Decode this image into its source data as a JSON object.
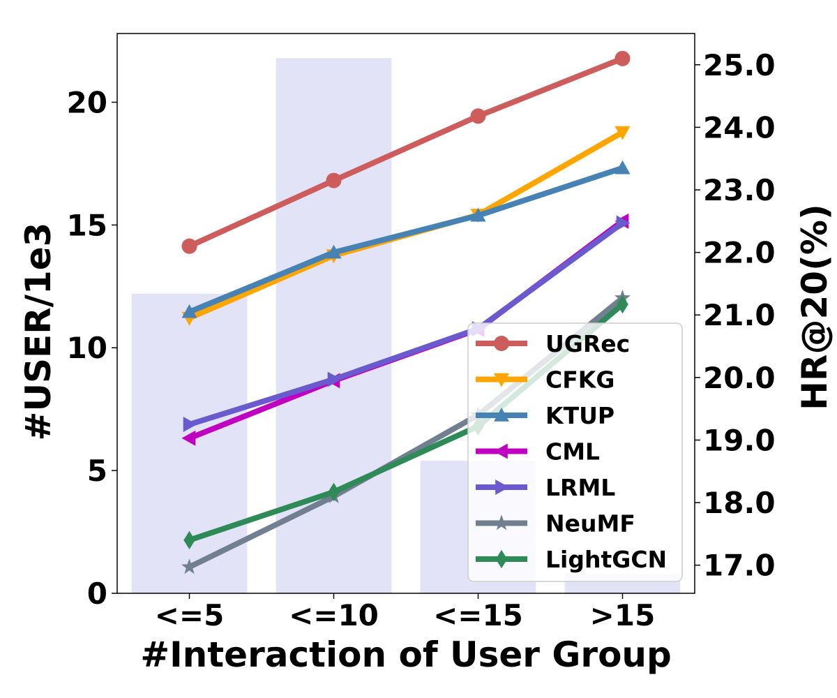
{
  "chart_data": {
    "type": "bar+line",
    "categories": [
      "<=5",
      "<=10",
      "<=15",
      ">15"
    ],
    "xlabel": "#Interaction of User Group",
    "ylabel_left": "#USER/1e3",
    "ylabel_right": "HR@20(%)",
    "ylim_left": [
      0,
      22.8
    ],
    "ylim_right": [
      16.55,
      25.5
    ],
    "yticks_left": [
      "0",
      "5",
      "10",
      "15",
      "20"
    ],
    "yticks_left_values": [
      0,
      5,
      10,
      15,
      20
    ],
    "yticks_right": [
      "17.0",
      "18.0",
      "19.0",
      "20.0",
      "21.0",
      "22.0",
      "23.0",
      "24.0",
      "25.0"
    ],
    "yticks_right_values": [
      17,
      18,
      19,
      20,
      21,
      22,
      23,
      24,
      25
    ],
    "bars": {
      "name": "#USER",
      "values": [
        12.2,
        21.8,
        5.4,
        0.8
      ],
      "color": "#e3e3f8"
    },
    "series": [
      {
        "name": "UGRec",
        "values": [
          22.1,
          23.15,
          24.18,
          25.1
        ],
        "color": "#cd5c5c",
        "marker": "circle"
      },
      {
        "name": "CFKG",
        "values": [
          20.95,
          21.95,
          22.6,
          23.92
        ],
        "color": "#ffa500",
        "marker": "triangle-down"
      },
      {
        "name": "KTUP",
        "values": [
          21.05,
          22.0,
          22.59,
          23.35
        ],
        "color": "#4682b4",
        "marker": "triangle-up"
      },
      {
        "name": "CML",
        "values": [
          19.03,
          19.95,
          20.77,
          22.5
        ],
        "color": "#c000c0",
        "marker": "triangle-left"
      },
      {
        "name": "LRML",
        "values": [
          19.25,
          19.97,
          20.78,
          22.47
        ],
        "color": "#6a5acd",
        "marker": "triangle-right"
      },
      {
        "name": "NeuMF",
        "values": [
          16.97,
          18.1,
          19.4,
          21.27
        ],
        "color": "#708090",
        "marker": "star"
      },
      {
        "name": "LightGCN",
        "values": [
          17.4,
          18.17,
          19.22,
          21.17
        ],
        "color": "#2e8b57",
        "marker": "diamond"
      }
    ],
    "legend_position": "lower-right"
  }
}
